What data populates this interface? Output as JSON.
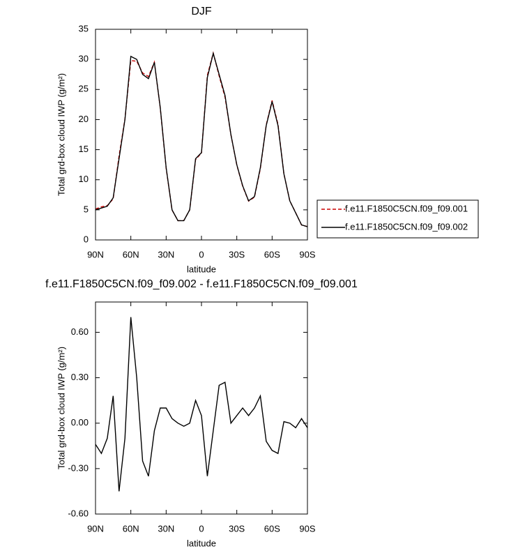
{
  "chart_data": [
    {
      "type": "line",
      "title": "DJF",
      "xlabel": "latitude",
      "ylabel": "Total grd-box cloud IWP (g/m²)",
      "x": [
        90,
        85,
        80,
        75,
        70,
        65,
        60,
        55,
        50,
        45,
        40,
        35,
        30,
        25,
        20,
        15,
        10,
        5,
        0,
        -5,
        -10,
        -15,
        -20,
        -25,
        -30,
        -35,
        -40,
        -45,
        -50,
        -55,
        -60,
        -65,
        -70,
        -75,
        -80,
        -85,
        -90
      ],
      "series": [
        {
          "name": "f.e11.F1850C5CN.f09_f09.001",
          "color": "#cc0000",
          "style": "dashed",
          "values": [
            5.14,
            5.5,
            5.7,
            6.82,
            13.95,
            20.1,
            29.8,
            29.7,
            27.75,
            27.15,
            29.55,
            21.9,
            11.9,
            4.97,
            3.2,
            3.22,
            5.0,
            13.35,
            14.45,
            27.35,
            31.05,
            27.25,
            23.73,
            17.5,
            12.45,
            8.9,
            6.45,
            7.1,
            11.82,
            19.12,
            23.18,
            19.2,
            10.99,
            6.5,
            4.53,
            2.47,
            2.23
          ]
        },
        {
          "name": "f.e11.F1850C5CN.f09_f09.002",
          "color": "#000000",
          "style": "solid",
          "values": [
            5.0,
            5.3,
            5.6,
            7.0,
            13.5,
            20.0,
            30.5,
            30.0,
            27.5,
            26.8,
            29.5,
            22.0,
            12.0,
            5.0,
            3.2,
            3.2,
            5.0,
            13.5,
            14.5,
            27.0,
            31.0,
            27.5,
            24.0,
            17.5,
            12.5,
            9.0,
            6.5,
            7.2,
            12.0,
            19.0,
            23.0,
            19.0,
            11.0,
            6.5,
            4.5,
            2.5,
            2.2
          ]
        }
      ],
      "xlim": [
        90,
        -90
      ],
      "xticks": [
        {
          "value": 90,
          "label": "90N"
        },
        {
          "value": 60,
          "label": "60N"
        },
        {
          "value": 30,
          "label": "30N"
        },
        0,
        {
          "value": -30,
          "label": "30S"
        },
        {
          "value": -60,
          "label": "60S"
        },
        {
          "value": -90,
          "label": "90S"
        }
      ],
      "ylim": [
        0,
        35
      ],
      "yticks": [
        0,
        5,
        10,
        15,
        20,
        25,
        30,
        35
      ],
      "legend": "right"
    },
    {
      "type": "line",
      "title": "f.e11.F1850C5CN.f09_f09.002 - f.e11.F1850C5CN.f09_f09.001",
      "xlabel": "latitude",
      "ylabel": "Total grd-box cloud IWP (g/m²)",
      "x": [
        90,
        85,
        80,
        75,
        70,
        65,
        60,
        55,
        50,
        45,
        40,
        35,
        30,
        25,
        20,
        15,
        10,
        5,
        0,
        -5,
        -10,
        -15,
        -20,
        -25,
        -30,
        -35,
        -40,
        -45,
        -50,
        -55,
        -60,
        -65,
        -70,
        -75,
        -80,
        -85,
        -90
      ],
      "series": [
        {
          "color": "#000000",
          "style": "solid",
          "values": [
            -0.14,
            -0.2,
            -0.1,
            0.18,
            -0.45,
            -0.1,
            0.7,
            0.3,
            -0.25,
            -0.35,
            -0.05,
            0.1,
            0.1,
            0.03,
            0.0,
            -0.02,
            0.0,
            0.15,
            0.05,
            -0.35,
            -0.05,
            0.25,
            0.27,
            0.0,
            0.05,
            0.1,
            0.05,
            0.1,
            0.18,
            -0.12,
            -0.18,
            -0.2,
            0.01,
            0.0,
            -0.03,
            0.03,
            -0.03
          ]
        }
      ],
      "xlim": [
        90,
        -90
      ],
      "xticks": [
        {
          "value": 90,
          "label": "90N"
        },
        {
          "value": 60,
          "label": "60N"
        },
        {
          "value": 30,
          "label": "30N"
        },
        0,
        {
          "value": -30,
          "label": "30S"
        },
        {
          "value": -60,
          "label": "60S"
        },
        {
          "value": -90,
          "label": "90S"
        }
      ],
      "ylim": [
        -0.6,
        0.8
      ],
      "yticks": [
        {
          "value": -0.6,
          "label": "-0.60"
        },
        {
          "value": -0.3,
          "label": "-0.30"
        },
        {
          "value": 0,
          "label": "0.00"
        },
        {
          "value": 0.3,
          "label": "0.30"
        },
        {
          "value": 0.6,
          "label": "0.60"
        }
      ]
    }
  ]
}
